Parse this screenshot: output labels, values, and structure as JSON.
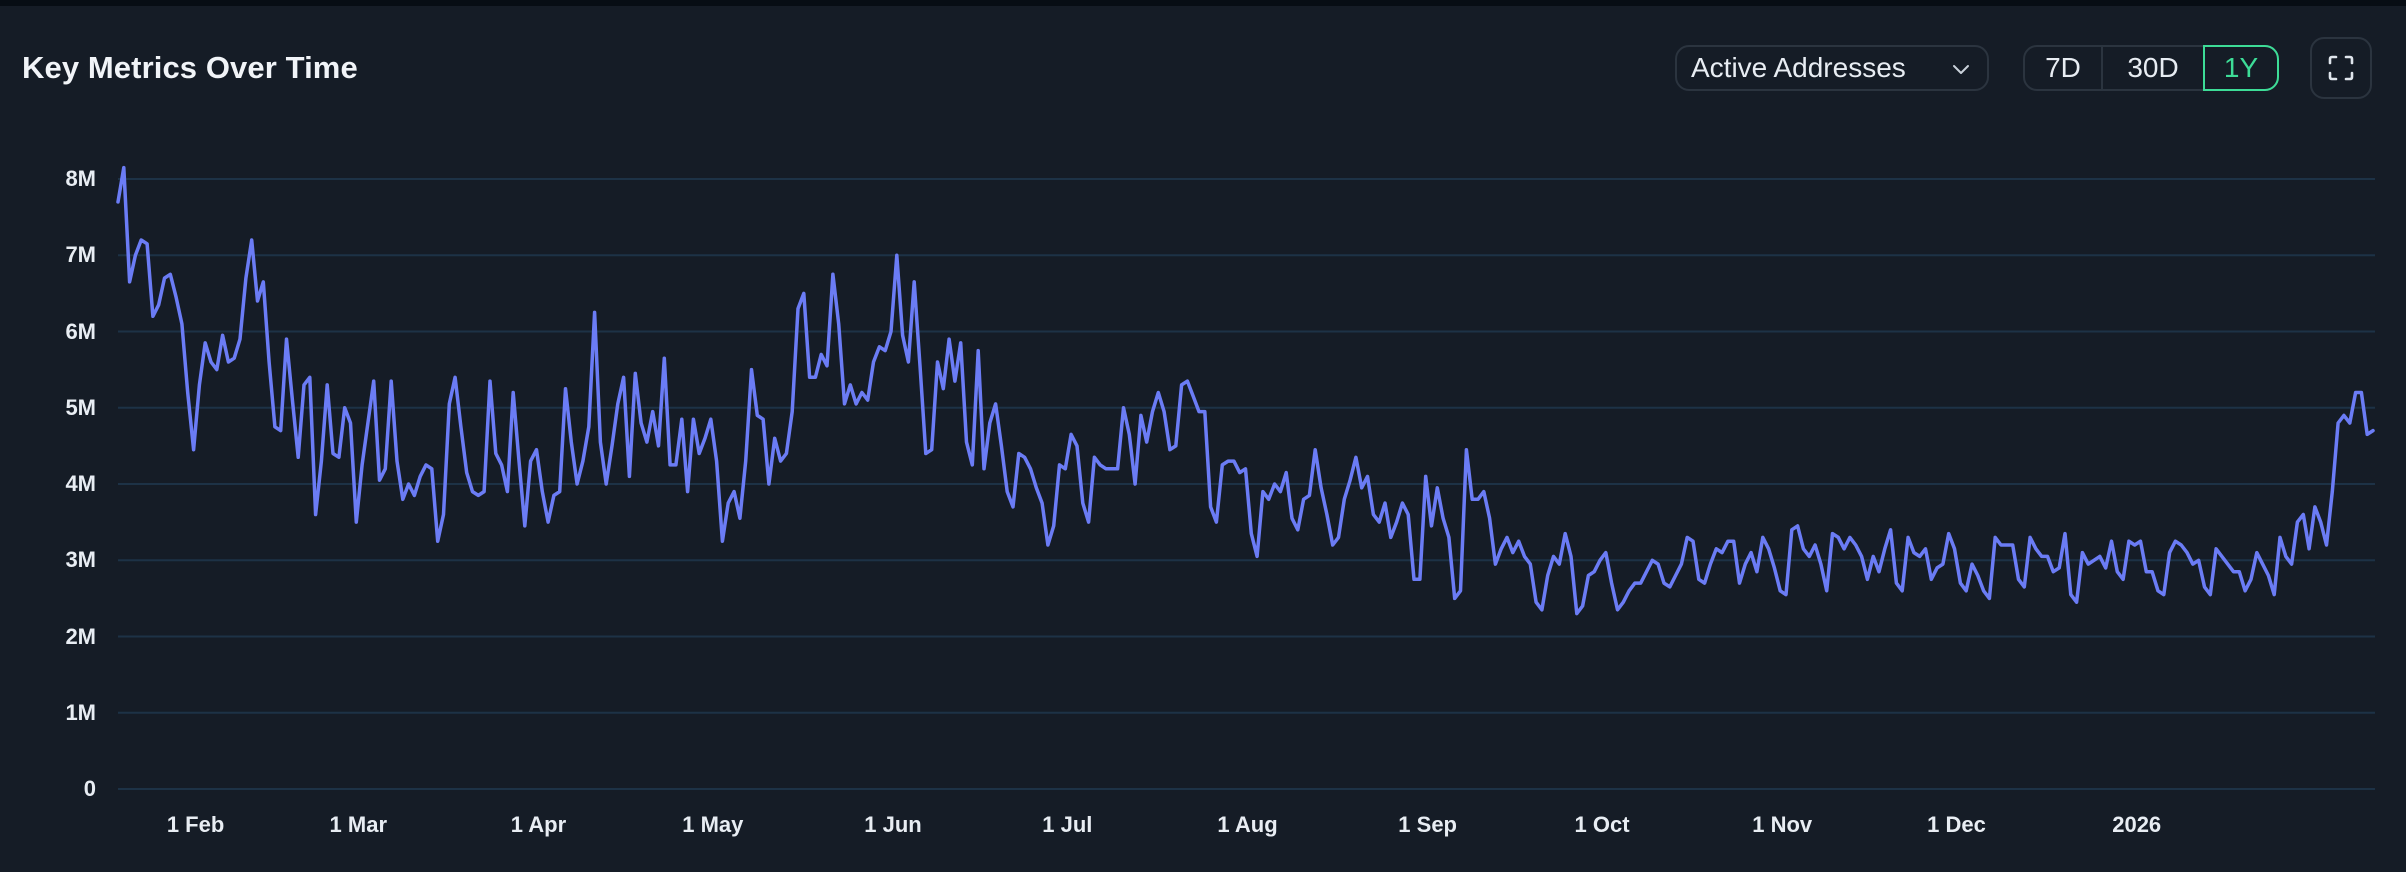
{
  "header": {
    "title": "Key Metrics Over Time"
  },
  "controls": {
    "metric_select": {
      "value": "Active Addresses",
      "icon": "chevron-down-icon"
    },
    "range_buttons": [
      {
        "label": "7D",
        "active": false
      },
      {
        "label": "30D",
        "active": false
      },
      {
        "label": "1Y",
        "active": true
      }
    ],
    "expand_button": {
      "icon": "fullscreen-icon"
    }
  },
  "colors": {
    "background": "#151c26",
    "line": "#6b7cf5",
    "grid": "#1d3246",
    "accent": "#3ddc97",
    "border": "#2b343f"
  },
  "chart_data": {
    "type": "line",
    "title": "Key Metrics Over Time",
    "series_name": "Active Addresses",
    "xlabel": "",
    "ylabel": "",
    "ylim": [
      0,
      8000000
    ],
    "y_ticks": [
      "0",
      "1M",
      "2M",
      "3M",
      "4M",
      "5M",
      "6M",
      "7M",
      "8M"
    ],
    "x_ticks": [
      {
        "label": "1 Feb",
        "day": 13
      },
      {
        "label": "1 Mar",
        "day": 41
      },
      {
        "label": "1 Apr",
        "day": 72
      },
      {
        "label": "1 May",
        "day": 102
      },
      {
        "label": "1 Jun",
        "day": 133
      },
      {
        "label": "1 Jul",
        "day": 163
      },
      {
        "label": "1 Aug",
        "day": 194
      },
      {
        "label": "1 Sep",
        "day": 225
      },
      {
        "label": "1 Oct",
        "day": 255
      },
      {
        "label": "1 Nov",
        "day": 286
      },
      {
        "label": "1 Dec",
        "day": 316
      },
      {
        "label": "2026",
        "day": 347
      }
    ],
    "grid": true,
    "legend": "none",
    "x_start_date": "2025-01-19 (approx.)",
    "values_millions": [
      7.7,
      8.15,
      6.65,
      7.0,
      7.2,
      7.15,
      6.2,
      6.35,
      6.7,
      6.75,
      6.45,
      6.1,
      5.2,
      4.45,
      5.3,
      5.85,
      5.6,
      5.5,
      5.95,
      5.6,
      5.65,
      5.9,
      6.7,
      7.2,
      6.4,
      6.65,
      5.6,
      4.75,
      4.7,
      5.9,
      5.1,
      4.35,
      5.3,
      5.4,
      3.6,
      4.3,
      5.3,
      4.4,
      4.35,
      5.0,
      4.8,
      3.5,
      4.25,
      4.8,
      5.35,
      4.05,
      4.2,
      5.35,
      4.3,
      3.8,
      4.0,
      3.85,
      4.1,
      4.25,
      4.2,
      3.25,
      3.6,
      5.05,
      5.4,
      4.75,
      4.15,
      3.9,
      3.85,
      3.9,
      5.35,
      4.4,
      4.25,
      3.9,
      5.2,
      4.3,
      3.45,
      4.3,
      4.45,
      3.9,
      3.5,
      3.85,
      3.9,
      5.25,
      4.55,
      4.0,
      4.3,
      4.75,
      6.25,
      4.55,
      4.0,
      4.5,
      5.05,
      5.4,
      4.1,
      5.45,
      4.8,
      4.55,
      4.95,
      4.5,
      5.65,
      4.25,
      4.25,
      4.85,
      3.9,
      4.85,
      4.4,
      4.6,
      4.85,
      4.3,
      3.25,
      3.75,
      3.9,
      3.55,
      4.3,
      5.5,
      4.9,
      4.85,
      4.0,
      4.6,
      4.3,
      4.4,
      4.95,
      6.3,
      6.5,
      5.4,
      5.4,
      5.7,
      5.55,
      6.75,
      6.1,
      5.05,
      5.3,
      5.05,
      5.2,
      5.1,
      5.6,
      5.8,
      5.75,
      6.0,
      7.0,
      5.95,
      5.6,
      6.65,
      5.55,
      4.4,
      4.45,
      5.6,
      5.25,
      5.9,
      5.35,
      5.85,
      4.55,
      4.25,
      5.75,
      4.2,
      4.8,
      5.05,
      4.5,
      3.9,
      3.7,
      4.4,
      4.35,
      4.2,
      3.95,
      3.75,
      3.2,
      3.45,
      4.25,
      4.2,
      4.65,
      4.5,
      3.75,
      3.5,
      4.35,
      4.25,
      4.2,
      4.2,
      4.2,
      5.0,
      4.65,
      4.0,
      4.9,
      4.55,
      4.95,
      5.2,
      4.95,
      4.45,
      4.5,
      5.3,
      5.35,
      5.15,
      4.95,
      4.95,
      3.7,
      3.5,
      4.25,
      4.3,
      4.3,
      4.15,
      4.2,
      3.35,
      3.05,
      3.9,
      3.8,
      4.0,
      3.9,
      4.15,
      3.55,
      3.4,
      3.8,
      3.85,
      4.45,
      3.95,
      3.6,
      3.2,
      3.3,
      3.8,
      4.05,
      4.35,
      3.95,
      4.1,
      3.6,
      3.5,
      3.75,
      3.3,
      3.5,
      3.75,
      3.6,
      2.75,
      2.75,
      4.1,
      3.45,
      3.95,
      3.55,
      3.3,
      2.5,
      2.6,
      4.45,
      3.8,
      3.8,
      3.9,
      3.55,
      2.95,
      3.15,
      3.3,
      3.1,
      3.25,
      3.05,
      2.95,
      2.45,
      2.35,
      2.8,
      3.05,
      2.95,
      3.35,
      3.05,
      2.3,
      2.4,
      2.8,
      2.85,
      3.0,
      3.1,
      2.7,
      2.35,
      2.45,
      2.6,
      2.7,
      2.7,
      2.85,
      3.0,
      2.95,
      2.7,
      2.65,
      2.8,
      2.95,
      3.3,
      3.25,
      2.75,
      2.7,
      2.95,
      3.15,
      3.1,
      3.25,
      3.25,
      2.7,
      2.95,
      3.1,
      2.85,
      3.3,
      3.15,
      2.9,
      2.6,
      2.55,
      3.4,
      3.45,
      3.15,
      3.05,
      3.2,
      2.95,
      2.6,
      3.35,
      3.3,
      3.15,
      3.3,
      3.2,
      3.05,
      2.75,
      3.05,
      2.85,
      3.15,
      3.4,
      2.7,
      2.6,
      3.3,
      3.1,
      3.05,
      3.15,
      2.75,
      2.9,
      2.95,
      3.35,
      3.15,
      2.7,
      2.6,
      2.95,
      2.8,
      2.6,
      2.5,
      3.3,
      3.2,
      3.2,
      3.2,
      2.75,
      2.65,
      3.3,
      3.15,
      3.05,
      3.05,
      2.85,
      2.9,
      3.35,
      2.55,
      2.45,
      3.1,
      2.95,
      3.0,
      3.05,
      2.9,
      3.25,
      2.85,
      2.75,
      3.25,
      3.2,
      3.25,
      2.85,
      2.85,
      2.6,
      2.55,
      3.1,
      3.25,
      3.2,
      3.1,
      2.95,
      3.0,
      2.65,
      2.55,
      3.15,
      3.05,
      2.95,
      2.85,
      2.85,
      2.6,
      2.75,
      3.1,
      2.95,
      2.8,
      2.55,
      3.3,
      3.05,
      2.95,
      3.5,
      3.6,
      3.15,
      3.7,
      3.5,
      3.2,
      3.9,
      4.8,
      4.9,
      4.8,
      5.2,
      5.2,
      4.65,
      4.7
    ]
  }
}
